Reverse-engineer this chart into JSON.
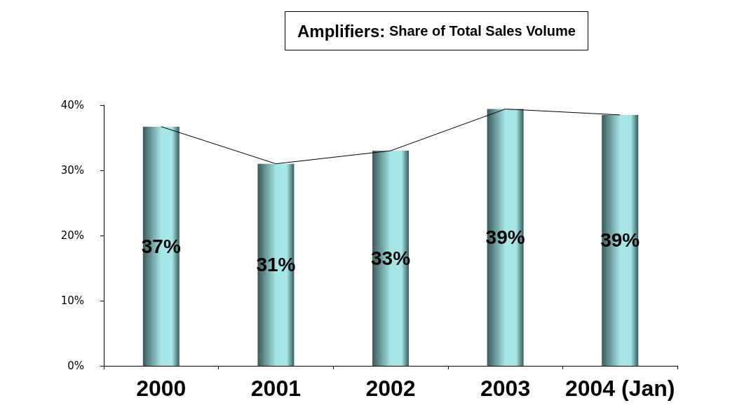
{
  "chart_data": {
    "type": "bar",
    "title": "Amplifiers: Share of Total Sales Volume",
    "categories": [
      "2000",
      "2001",
      "2002",
      "2003",
      "2004 (Jan)"
    ],
    "series": [
      {
        "color": "#a6e6e6",
        "values": [
          36.7,
          31,
          33,
          39.4,
          38.5
        ],
        "value_labels": [
          "37%",
          "31%",
          "33%",
          "39%",
          "39%"
        ]
      },
      {
        "type": "line",
        "color": "#000000",
        "values": [
          36.7,
          31,
          33,
          39.4,
          38.5
        ]
      }
    ],
    "ylim": [
      0,
      40
    ],
    "yticks": [
      {
        "value": 0,
        "label": "0%"
      },
      {
        "value": 10,
        "label": "10%"
      },
      {
        "value": 20,
        "label": "20%"
      },
      {
        "value": 30,
        "label": "30%"
      },
      {
        "value": 40,
        "label": "40%"
      }
    ],
    "grid": false,
    "marker": "none",
    "line_style": "solid"
  }
}
